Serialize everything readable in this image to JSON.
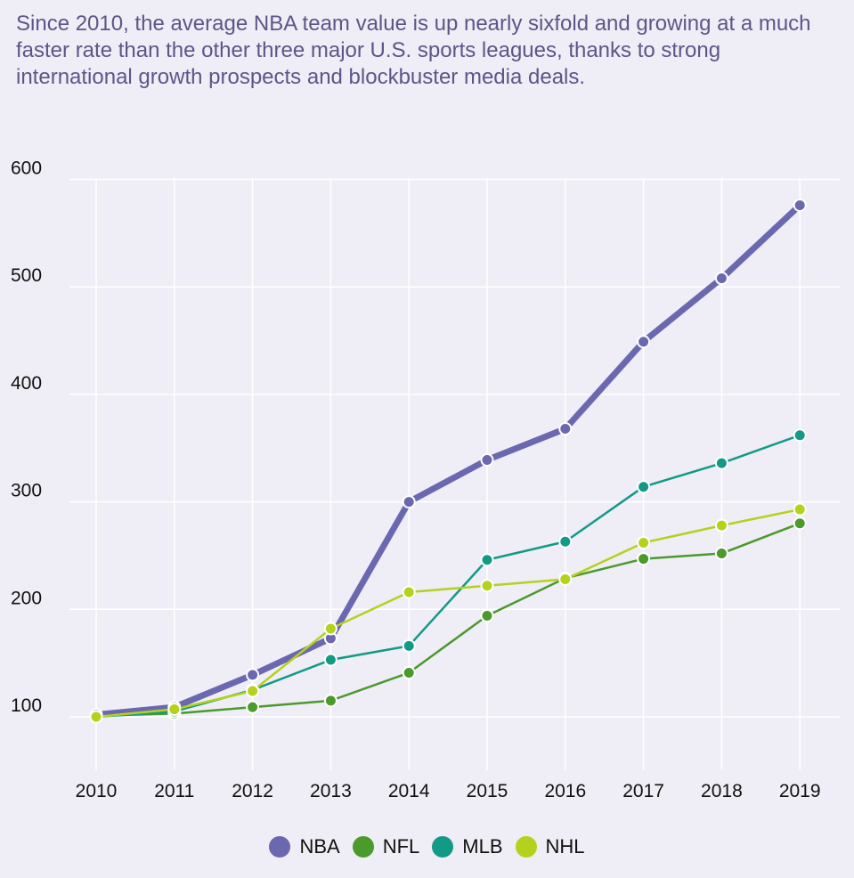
{
  "subtitle": "Since 2010, the average NBA team value is up nearly sixfold and growing at a much faster rate than the other three major U.S. sports leagues, thanks to strong international growth prospects and blockbuster media deals.",
  "chart_data": {
    "type": "line",
    "title": "",
    "xlabel": "",
    "ylabel": "",
    "x": [
      "2010",
      "2011",
      "2012",
      "2013",
      "2014",
      "2015",
      "2016",
      "2017",
      "2018",
      "2019"
    ],
    "ylim": [
      50,
      600
    ],
    "yticks": [
      100,
      200,
      300,
      400,
      500,
      600
    ],
    "grid": true,
    "legend_position": "bottom",
    "series": [
      {
        "name": "NBA",
        "color": "#6b68b0",
        "values": [
          102,
          109,
          139,
          173,
          300,
          339,
          368,
          449,
          508,
          576
        ]
      },
      {
        "name": "NFL",
        "color": "#4a9a2c",
        "values": [
          101,
          103,
          109,
          115,
          141,
          194,
          229,
          247,
          252,
          280
        ]
      },
      {
        "name": "MLB",
        "color": "#139a86",
        "values": [
          100,
          105,
          125,
          153,
          166,
          246,
          263,
          314,
          336,
          362
        ]
      },
      {
        "name": "NHL",
        "color": "#b4d21c",
        "values": [
          100,
          107,
          124,
          182,
          216,
          222,
          228,
          262,
          278,
          293
        ]
      }
    ]
  }
}
